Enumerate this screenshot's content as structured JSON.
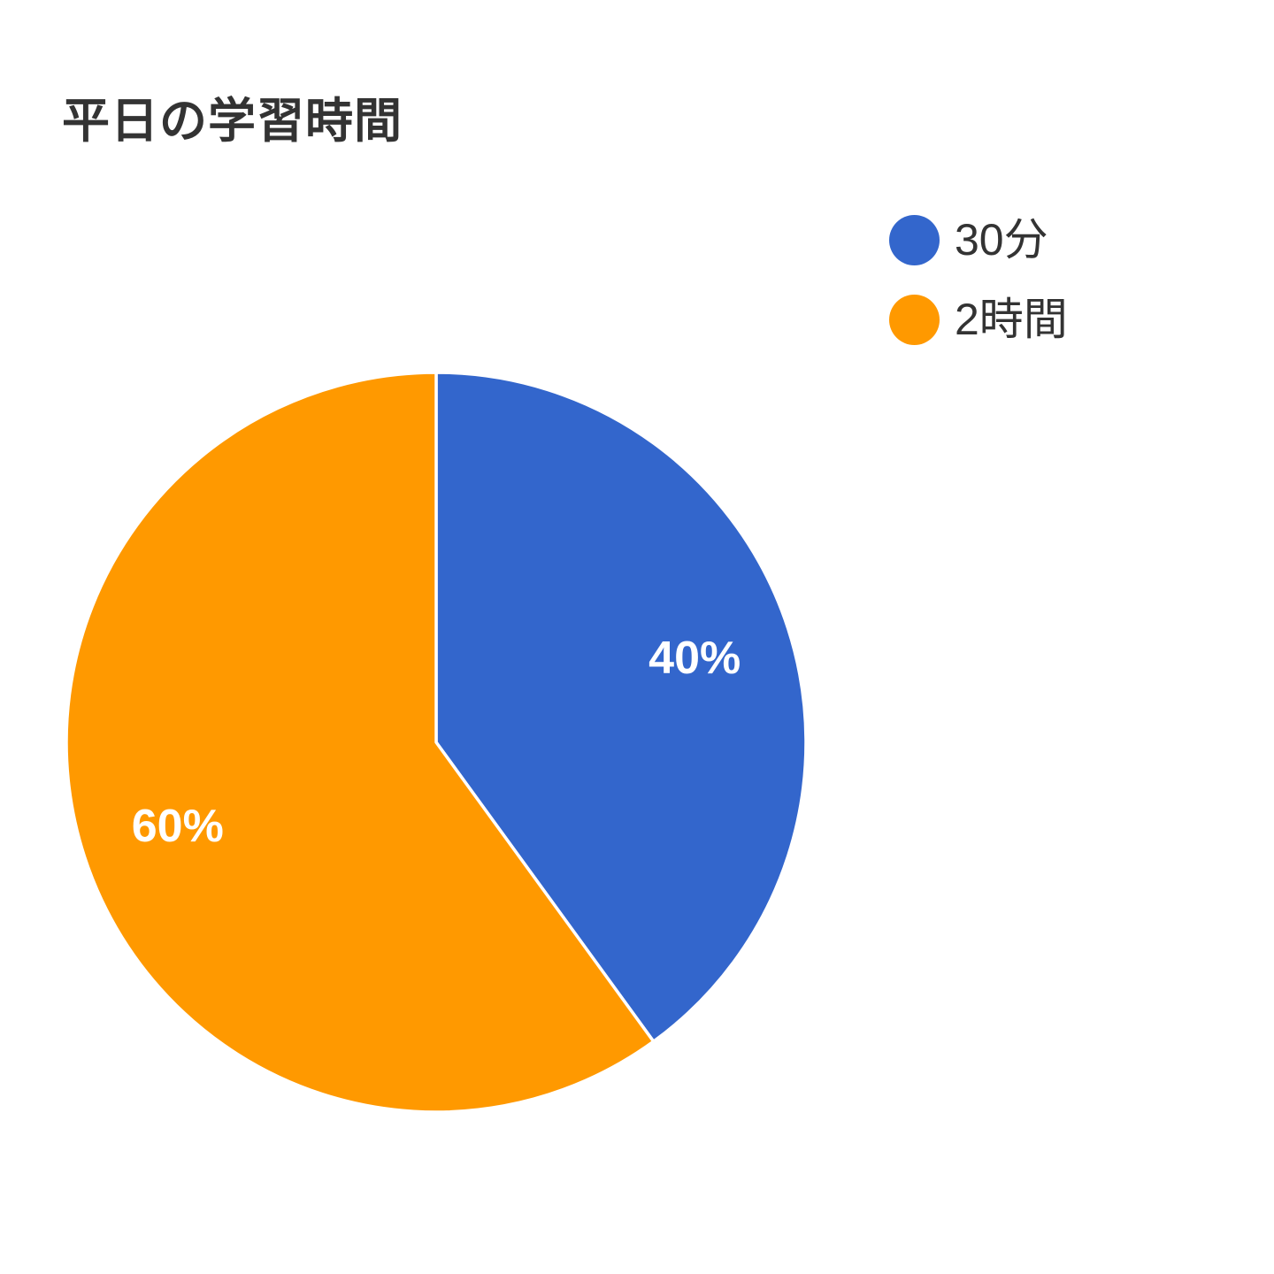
{
  "chart_data": {
    "type": "pie",
    "title": "平日の学習時間",
    "legend_position": "right",
    "direction": "clockwise",
    "start_angle_deg": 0,
    "series": [
      {
        "label": "30分",
        "value": 40,
        "percent_label": "40%",
        "color": "#3366CC"
      },
      {
        "label": "2時間",
        "value": 60,
        "percent_label": "60%",
        "color": "#FF9900"
      }
    ],
    "slice_label_color": "#FFFFFF",
    "slice_border_color": "#FFFFFF",
    "title_color": "#333333",
    "legend_text_color": "#333333",
    "background_color": "#FFFFFF"
  }
}
